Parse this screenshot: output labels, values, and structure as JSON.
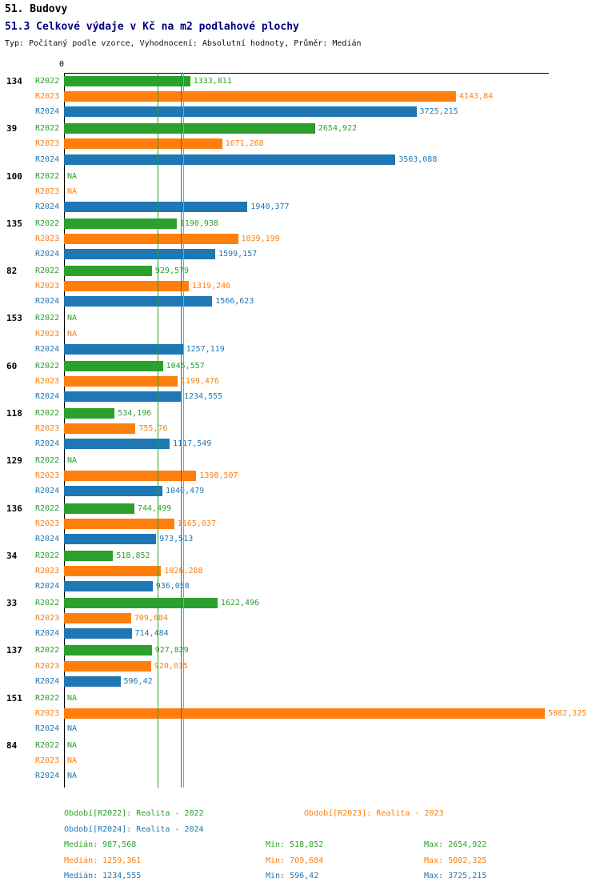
{
  "header": {
    "title": "51. Budovy",
    "subtitle": "51.3 Celkové výdaje v Kč na m2 podlahové plochy",
    "meta": "Typ: Počítaný podle vzorce, Vyhodnocení: Absolutní hodnoty, Průměr: Medián"
  },
  "chart_data": {
    "type": "bar",
    "orientation": "horizontal",
    "title": "51.3 Celkové výdaje v Kč na m2 podlahové plochy",
    "xlabel": "",
    "ylabel": "",
    "xlim": [
      0,
      5125
    ],
    "axis_zero_label": "0",
    "grid": false,
    "legend_position": "bottom",
    "series": [
      "R2022",
      "R2023",
      "R2024"
    ],
    "colors": {
      "R2022": "#2ca02c",
      "R2023": "#ff7f0e",
      "R2024": "#1f77b4"
    },
    "groups": [
      {
        "label": "134",
        "bars": [
          {
            "series": "R2022",
            "value": 1333.811,
            "label": "1333,811"
          },
          {
            "series": "R2023",
            "value": 4143.84,
            "label": "4143,84"
          },
          {
            "series": "R2024",
            "value": 3725.215,
            "label": "3725,215"
          }
        ]
      },
      {
        "label": "39",
        "bars": [
          {
            "series": "R2022",
            "value": 2654.922,
            "label": "2654,922"
          },
          {
            "series": "R2023",
            "value": 1671.268,
            "label": "1671,268"
          },
          {
            "series": "R2024",
            "value": 3503.088,
            "label": "3503,088"
          }
        ]
      },
      {
        "label": "100",
        "bars": [
          {
            "series": "R2022",
            "value": null,
            "label": "NA"
          },
          {
            "series": "R2023",
            "value": null,
            "label": "NA"
          },
          {
            "series": "R2024",
            "value": 1940.377,
            "label": "1940,377"
          }
        ]
      },
      {
        "label": "135",
        "bars": [
          {
            "series": "R2022",
            "value": 1190.938,
            "label": "1190,938"
          },
          {
            "series": "R2023",
            "value": 1839.199,
            "label": "1839,199"
          },
          {
            "series": "R2024",
            "value": 1599.157,
            "label": "1599,157"
          }
        ]
      },
      {
        "label": "82",
        "bars": [
          {
            "series": "R2022",
            "value": 929.579,
            "label": "929,579"
          },
          {
            "series": "R2023",
            "value": 1319.246,
            "label": "1319,246"
          },
          {
            "series": "R2024",
            "value": 1566.623,
            "label": "1566,623"
          }
        ]
      },
      {
        "label": "153",
        "bars": [
          {
            "series": "R2022",
            "value": null,
            "label": "NA"
          },
          {
            "series": "R2023",
            "value": null,
            "label": "NA"
          },
          {
            "series": "R2024",
            "value": 1257.119,
            "label": "1257,119"
          }
        ]
      },
      {
        "label": "60",
        "bars": [
          {
            "series": "R2022",
            "value": 1045.557,
            "label": "1045,557"
          },
          {
            "series": "R2023",
            "value": 1199.476,
            "label": "1199,476"
          },
          {
            "series": "R2024",
            "value": 1234.555,
            "label": "1234,555"
          }
        ]
      },
      {
        "label": "118",
        "bars": [
          {
            "series": "R2022",
            "value": 534.196,
            "label": "534,196"
          },
          {
            "series": "R2023",
            "value": 755.76,
            "label": "755,76"
          },
          {
            "series": "R2024",
            "value": 1117.549,
            "label": "1117,549"
          }
        ]
      },
      {
        "label": "129",
        "bars": [
          {
            "series": "R2022",
            "value": null,
            "label": "NA"
          },
          {
            "series": "R2023",
            "value": 1398.507,
            "label": "1398,507"
          },
          {
            "series": "R2024",
            "value": 1040.479,
            "label": "1040,479"
          }
        ]
      },
      {
        "label": "136",
        "bars": [
          {
            "series": "R2022",
            "value": 744.499,
            "label": "744,499"
          },
          {
            "series": "R2023",
            "value": 1165.037,
            "label": "1165,037"
          },
          {
            "series": "R2024",
            "value": 973.513,
            "label": "973,513"
          }
        ]
      },
      {
        "label": "34",
        "bars": [
          {
            "series": "R2022",
            "value": 518.852,
            "label": "518,852"
          },
          {
            "series": "R2023",
            "value": 1026.288,
            "label": "1026,288"
          },
          {
            "series": "R2024",
            "value": 936.058,
            "label": "936,058"
          }
        ]
      },
      {
        "label": "33",
        "bars": [
          {
            "series": "R2022",
            "value": 1622.496,
            "label": "1622,496"
          },
          {
            "series": "R2023",
            "value": 709.684,
            "label": "709,684"
          },
          {
            "series": "R2024",
            "value": 714.484,
            "label": "714,484"
          }
        ]
      },
      {
        "label": "137",
        "bars": [
          {
            "series": "R2022",
            "value": 927.829,
            "label": "927,829"
          },
          {
            "series": "R2023",
            "value": 920.035,
            "label": "920,035"
          },
          {
            "series": "R2024",
            "value": 596.42,
            "label": "596,42"
          }
        ]
      },
      {
        "label": "151",
        "bars": [
          {
            "series": "R2022",
            "value": null,
            "label": "NA"
          },
          {
            "series": "R2023",
            "value": 5082.325,
            "label": "5082,325"
          },
          {
            "series": "R2024",
            "value": null,
            "label": "NA"
          }
        ]
      },
      {
        "label": "84",
        "bars": [
          {
            "series": "R2022",
            "value": null,
            "label": "NA"
          },
          {
            "series": "R2023",
            "value": null,
            "label": "NA"
          },
          {
            "series": "R2024",
            "value": null,
            "label": "NA"
          }
        ]
      }
    ],
    "reference_lines": [
      {
        "series": "R2022",
        "value": 987.568
      },
      {
        "series": "R2024",
        "value": 1234.555
      },
      {
        "series": "R2023",
        "value": 1259.361
      }
    ]
  },
  "footer": {
    "legend": [
      {
        "series": "R2022",
        "text": "Období[R2022]: Realita - 2022"
      },
      {
        "series": "R2023",
        "text": "Období[R2023]: Realita - 2023"
      },
      {
        "series": "R2024",
        "text": "Období[R2024]: Realita - 2024"
      }
    ],
    "stats": [
      {
        "series": "R2022",
        "median": "Medián: 987,568",
        "min": "Min: 518,852",
        "max": "Max: 2654,922"
      },
      {
        "series": "R2023",
        "median": "Medián: 1259,361",
        "min": "Min: 709,684",
        "max": "Max: 5082,325"
      },
      {
        "series": "R2024",
        "median": "Medián: 1234,555",
        "min": "Min: 596,42",
        "max": "Max: 3725,215"
      }
    ]
  }
}
